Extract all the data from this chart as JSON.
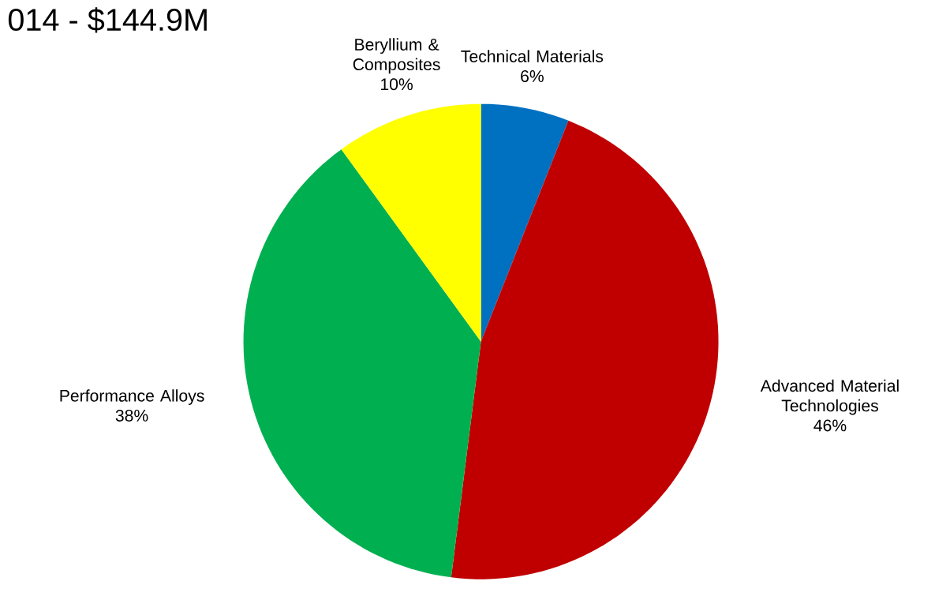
{
  "chart_data": {
    "type": "pie",
    "title": "014 - $144.9M",
    "categories": [
      "Technical Materials",
      "Advanced Material Technologies",
      "Performance Alloys",
      "Beryllium & Composites"
    ],
    "values": [
      6,
      46,
      38,
      10
    ],
    "value_labels": [
      "6%",
      "46%",
      "38%",
      "10%"
    ],
    "colors": [
      "#0070c0",
      "#c00000",
      "#00b050",
      "#ffff00"
    ]
  }
}
